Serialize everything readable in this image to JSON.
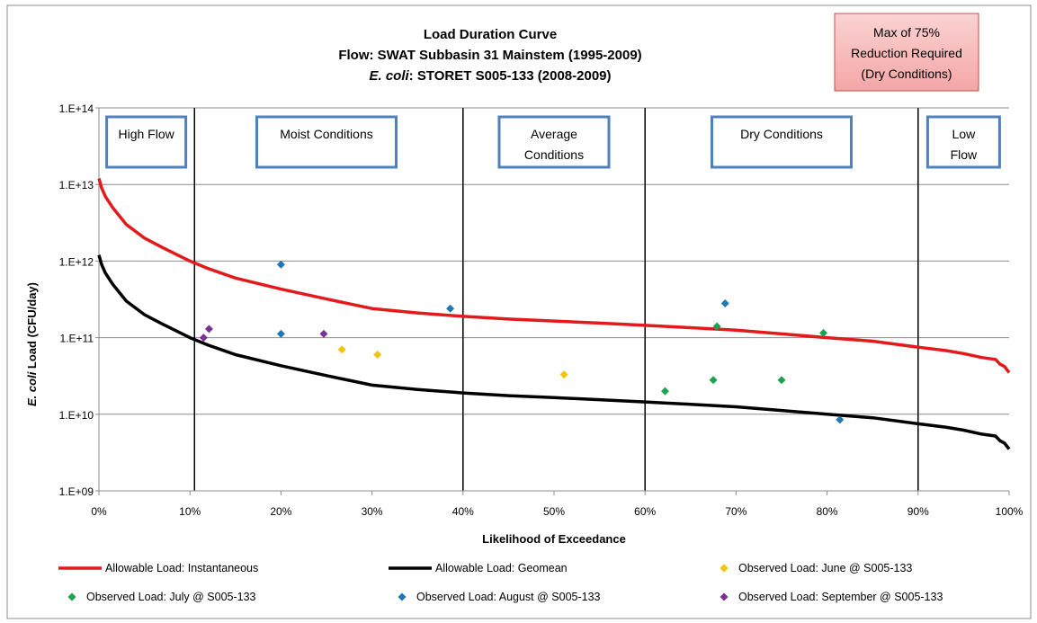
{
  "chart_data": {
    "type": "line+scatter",
    "title": {
      "line1": "Load Duration Curve",
      "line2": "Flow: SWAT Subbasin 31 Mainstem (1995-2009)",
      "line3_italic": "E. coli",
      "line3_rest": ": STORET S005-133 (2008-2009)"
    },
    "xlabel": "Likelihood of Exceedance",
    "ylabel_italic": "E. coli",
    "ylabel_rest": " Load (CFU/day)",
    "x_scale": "linear",
    "y_scale": "log",
    "xlim": [
      0,
      100
    ],
    "ylim": [
      1000000000.0,
      100000000000000.0
    ],
    "x_ticks": [
      "0%",
      "10%",
      "20%",
      "30%",
      "40%",
      "50%",
      "60%",
      "70%",
      "80%",
      "90%",
      "100%"
    ],
    "y_ticks": [
      {
        "value": 1000000000.0,
        "label": "1.E+09"
      },
      {
        "value": 10000000000.0,
        "label": "1.E+10"
      },
      {
        "value": 100000000000.0,
        "label": "1.E+11"
      },
      {
        "value": 1000000000000.0,
        "label": "1.E+12"
      },
      {
        "value": 10000000000000.0,
        "label": "1.E+13"
      },
      {
        "value": 100000000000000.0,
        "label": "1.E+14"
      }
    ],
    "grid": "horizontal",
    "legend_position": "bottom",
    "zone_boundaries": [
      10.5,
      40,
      60,
      90
    ],
    "zones": [
      {
        "label": [
          "High Flow"
        ],
        "x": 5.2
      },
      {
        "label": [
          "Moist Conditions"
        ],
        "x": 25
      },
      {
        "label": [
          "Average",
          "Conditions"
        ],
        "x": 50
      },
      {
        "label": [
          "Dry Conditions"
        ],
        "x": 75
      },
      {
        "label": [
          "Low",
          "Flow"
        ],
        "x": 95
      }
    ],
    "reduction_note": [
      "Max of 75%",
      "Reduction Required",
      "(Dry Conditions)"
    ],
    "series": [
      {
        "name": "Allowable Load: Instantaneous",
        "kind": "line",
        "color": "#e31a1c",
        "x": [
          0,
          0.3,
          0.7,
          1.5,
          3,
          5,
          7,
          10,
          12,
          15,
          20,
          25,
          30,
          35,
          40,
          45,
          50,
          55,
          60,
          65,
          70,
          75,
          80,
          85,
          90,
          93,
          95,
          97,
          98.5,
          99,
          99.5,
          100
        ],
        "y": [
          12000000000000.0,
          9000000000000.0,
          7000000000000.0,
          5000000000000.0,
          3000000000000.0,
          2000000000000.0,
          1500000000000.0,
          1000000000000.0,
          800000000000.0,
          600000000000.0,
          430000000000.0,
          320000000000.0,
          240000000000.0,
          210000000000.0,
          190000000000.0,
          175000000000.0,
          165000000000.0,
          155000000000.0,
          145000000000.0,
          135000000000.0,
          125000000000.0,
          112000000000.0,
          100000000000.0,
          90000000000.0,
          75000000000.0,
          68000000000.0,
          62000000000.0,
          55000000000.0,
          52000000000.0,
          45000000000.0,
          42000000000.0,
          35000000000.0
        ]
      },
      {
        "name": "Allowable Load: Geomean",
        "kind": "line",
        "color": "#000000",
        "x": [
          0,
          0.3,
          0.7,
          1.5,
          3,
          5,
          7,
          10,
          12,
          15,
          20,
          25,
          30,
          35,
          40,
          45,
          50,
          55,
          60,
          65,
          70,
          75,
          80,
          85,
          90,
          93,
          95,
          97,
          98.5,
          99,
          99.5,
          100
        ],
        "y": [
          1200000000000.0,
          900000000000.0,
          700000000000.0,
          500000000000.0,
          300000000000.0,
          200000000000.0,
          150000000000.0,
          100000000000.0,
          80000000000.0,
          60000000000.0,
          43000000000.0,
          32000000000.0,
          24000000000.0,
          21000000000.0,
          19000000000.0,
          17500000000.0,
          16500000000.0,
          15500000000.0,
          14500000000.0,
          13500000000.0,
          12500000000.0,
          11200000000.0,
          10000000000.0,
          9000000000.0,
          7500000000.0,
          6800000000.0,
          6200000000.0,
          5500000000.0,
          5200000000.0,
          4500000000.0,
          4200000000.0,
          3500000000.0
        ]
      },
      {
        "name": "Observed Load: June @ S005-133",
        "kind": "scatter",
        "color": "#f5c400",
        "points": [
          [
            26.7,
            70000000000.0
          ],
          [
            30.6,
            60000000000.0
          ],
          [
            51.1,
            33000000000.0
          ]
        ]
      },
      {
        "name": "Observed Load: July @ S005-133",
        "kind": "scatter",
        "color": "#1ca350",
        "points": [
          [
            62.2,
            20000000000.0
          ],
          [
            67.5,
            28000000000.0
          ],
          [
            67.9,
            140000000000.0
          ],
          [
            75,
            28000000000.0
          ],
          [
            79.6,
            115000000000.0
          ]
        ]
      },
      {
        "name": "Observed Load: August @ S005-133",
        "kind": "scatter",
        "color": "#1f77b4",
        "points": [
          [
            20,
            900000000000.0
          ],
          [
            20,
            112000000000.0
          ],
          [
            38.6,
            240000000000.0
          ],
          [
            68.8,
            280000000000.0
          ],
          [
            81.4,
            8500000000.0
          ]
        ]
      },
      {
        "name": "Observed Load: September @ S005-133",
        "kind": "scatter",
        "color": "#7b3294",
        "points": [
          [
            11.5,
            100000000000.0
          ],
          [
            12.1,
            130000000000.0
          ],
          [
            24.7,
            112000000000.0
          ]
        ]
      }
    ]
  }
}
